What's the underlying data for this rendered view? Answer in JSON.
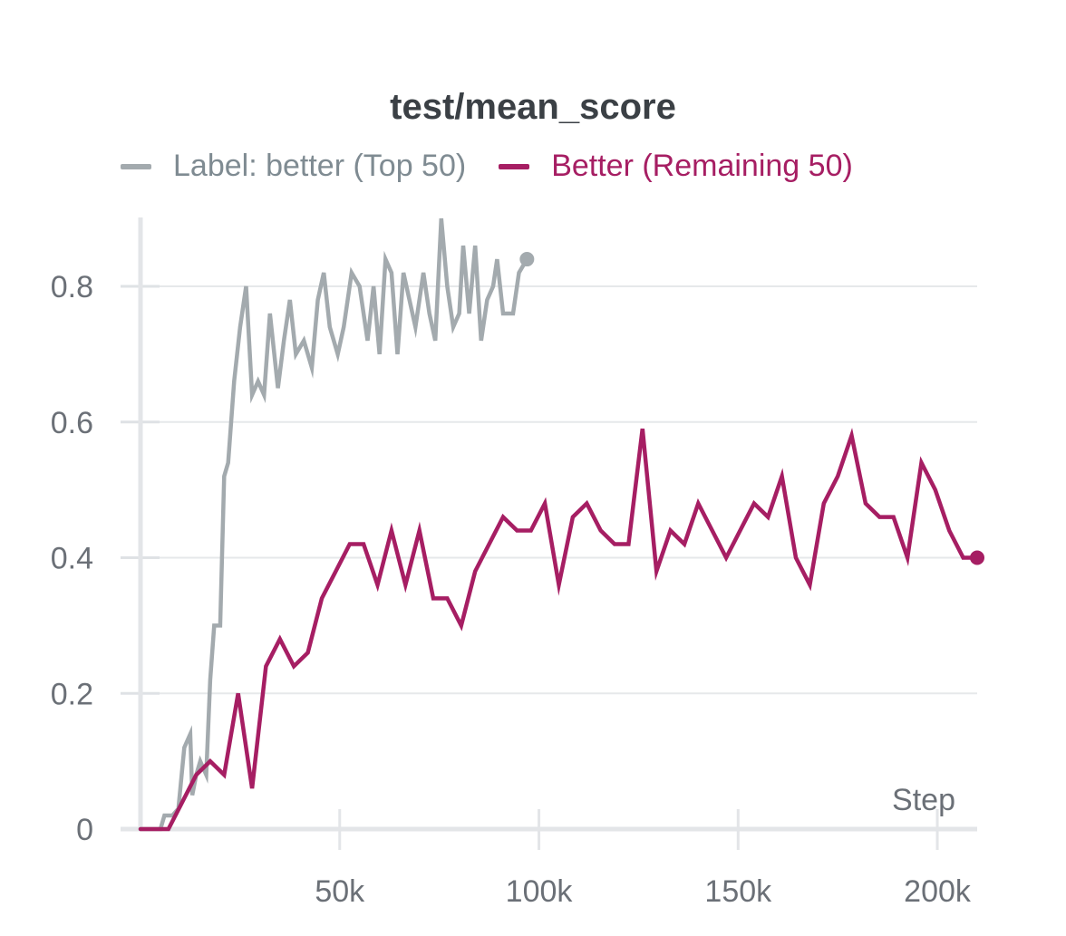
{
  "chart_data": {
    "type": "line",
    "title": "test/mean_score",
    "xlabel": "Step",
    "ylabel": "",
    "xlim": [
      0,
      210000
    ],
    "ylim": [
      0,
      0.9
    ],
    "grid": true,
    "legend_position": "top",
    "xticks": [
      50000,
      100000,
      150000,
      200000
    ],
    "xtick_labels": [
      "50k",
      "100k",
      "150k",
      "200k"
    ],
    "yticks": [
      0,
      0.2,
      0.4,
      0.6,
      0.8
    ],
    "ytick_labels": [
      "0",
      "0.2",
      "0.4",
      "0.6",
      "0.8"
    ],
    "series": [
      {
        "name": "Label: better (Top 50)",
        "color": "#a3aaae",
        "x": [
          0,
          5000,
          6000,
          8000,
          9500,
          11000,
          12500,
          13000,
          14000,
          15000,
          16500,
          17500,
          18500,
          20000,
          21000,
          22000,
          23500,
          25000,
          26500,
          28000,
          29500,
          31000,
          32500,
          34500,
          36000,
          37500,
          39000,
          41000,
          43000,
          44500,
          46000,
          47500,
          49500,
          51000,
          53000,
          55000,
          57000,
          58500,
          60000,
          61500,
          63000,
          64500,
          66000,
          67500,
          69000,
          71000,
          72500,
          74000,
          75500,
          77000,
          78500,
          80000,
          81000,
          82500,
          84000,
          85500,
          87000,
          88500,
          89500,
          91000,
          92000,
          93500,
          95000,
          97000
        ],
        "values": [
          0,
          0,
          0.02,
          0.02,
          0.03,
          0.12,
          0.14,
          0.05,
          0.08,
          0.1,
          0.08,
          0.22,
          0.3,
          0.3,
          0.52,
          0.54,
          0.66,
          0.74,
          0.8,
          0.64,
          0.66,
          0.64,
          0.76,
          0.65,
          0.72,
          0.78,
          0.7,
          0.72,
          0.68,
          0.78,
          0.82,
          0.74,
          0.7,
          0.74,
          0.82,
          0.8,
          0.72,
          0.8,
          0.7,
          0.84,
          0.82,
          0.7,
          0.82,
          0.78,
          0.74,
          0.82,
          0.76,
          0.72,
          0.9,
          0.8,
          0.74,
          0.76,
          0.86,
          0.76,
          0.86,
          0.72,
          0.78,
          0.8,
          0.84,
          0.76,
          0.76,
          0.76,
          0.82,
          0.84
        ]
      },
      {
        "name": "Better (Remaining 50)",
        "color": "#a61e63",
        "x": [
          0,
          3500,
          7000,
          10500,
          14000,
          17500,
          21000,
          24500,
          28000,
          31500,
          35000,
          38500,
          42000,
          45500,
          49000,
          52500,
          56000,
          59500,
          63000,
          66500,
          70000,
          73500,
          77000,
          80500,
          84000,
          87500,
          91000,
          94500,
          98000,
          101500,
          105000,
          108500,
          112000,
          115500,
          119000,
          122500,
          126000,
          129500,
          133000,
          136500,
          140000,
          143500,
          147000,
          150500,
          154000,
          157500,
          161000,
          164500,
          168000,
          171500,
          175000,
          178500,
          182000,
          185500,
          189000,
          192500,
          196000,
          199500,
          203000,
          206500,
          210000
        ],
        "values": [
          0,
          0,
          0,
          0.04,
          0.08,
          0.1,
          0.08,
          0.2,
          0.06,
          0.24,
          0.28,
          0.24,
          0.26,
          0.34,
          0.38,
          0.42,
          0.42,
          0.36,
          0.44,
          0.36,
          0.44,
          0.34,
          0.34,
          0.3,
          0.38,
          0.42,
          0.46,
          0.44,
          0.44,
          0.48,
          0.36,
          0.46,
          0.48,
          0.44,
          0.42,
          0.42,
          0.59,
          0.38,
          0.44,
          0.42,
          0.48,
          0.44,
          0.4,
          0.44,
          0.48,
          0.46,
          0.52,
          0.4,
          0.36,
          0.48,
          0.52,
          0.58,
          0.48,
          0.46,
          0.46,
          0.4,
          0.54,
          0.5,
          0.44,
          0.4,
          0.4
        ]
      }
    ]
  }
}
